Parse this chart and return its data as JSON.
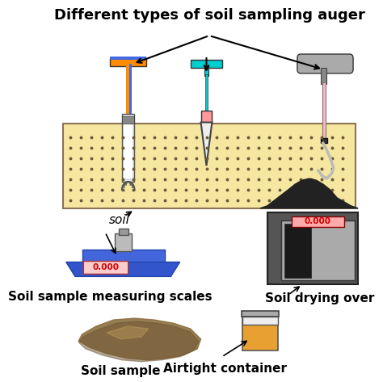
{
  "title": "Different types of soil sampling auger",
  "title_fontsize": 13,
  "title_fontweight": "bold",
  "bg_color": "#ffffff",
  "labels": {
    "soil": "soil",
    "scales": "Soil sample measuring scales",
    "sample": "Soil sample",
    "airtight": "Airtight container",
    "drying": "Soil drying over"
  },
  "label_fontsize": 11,
  "label_fontweight": "bold"
}
